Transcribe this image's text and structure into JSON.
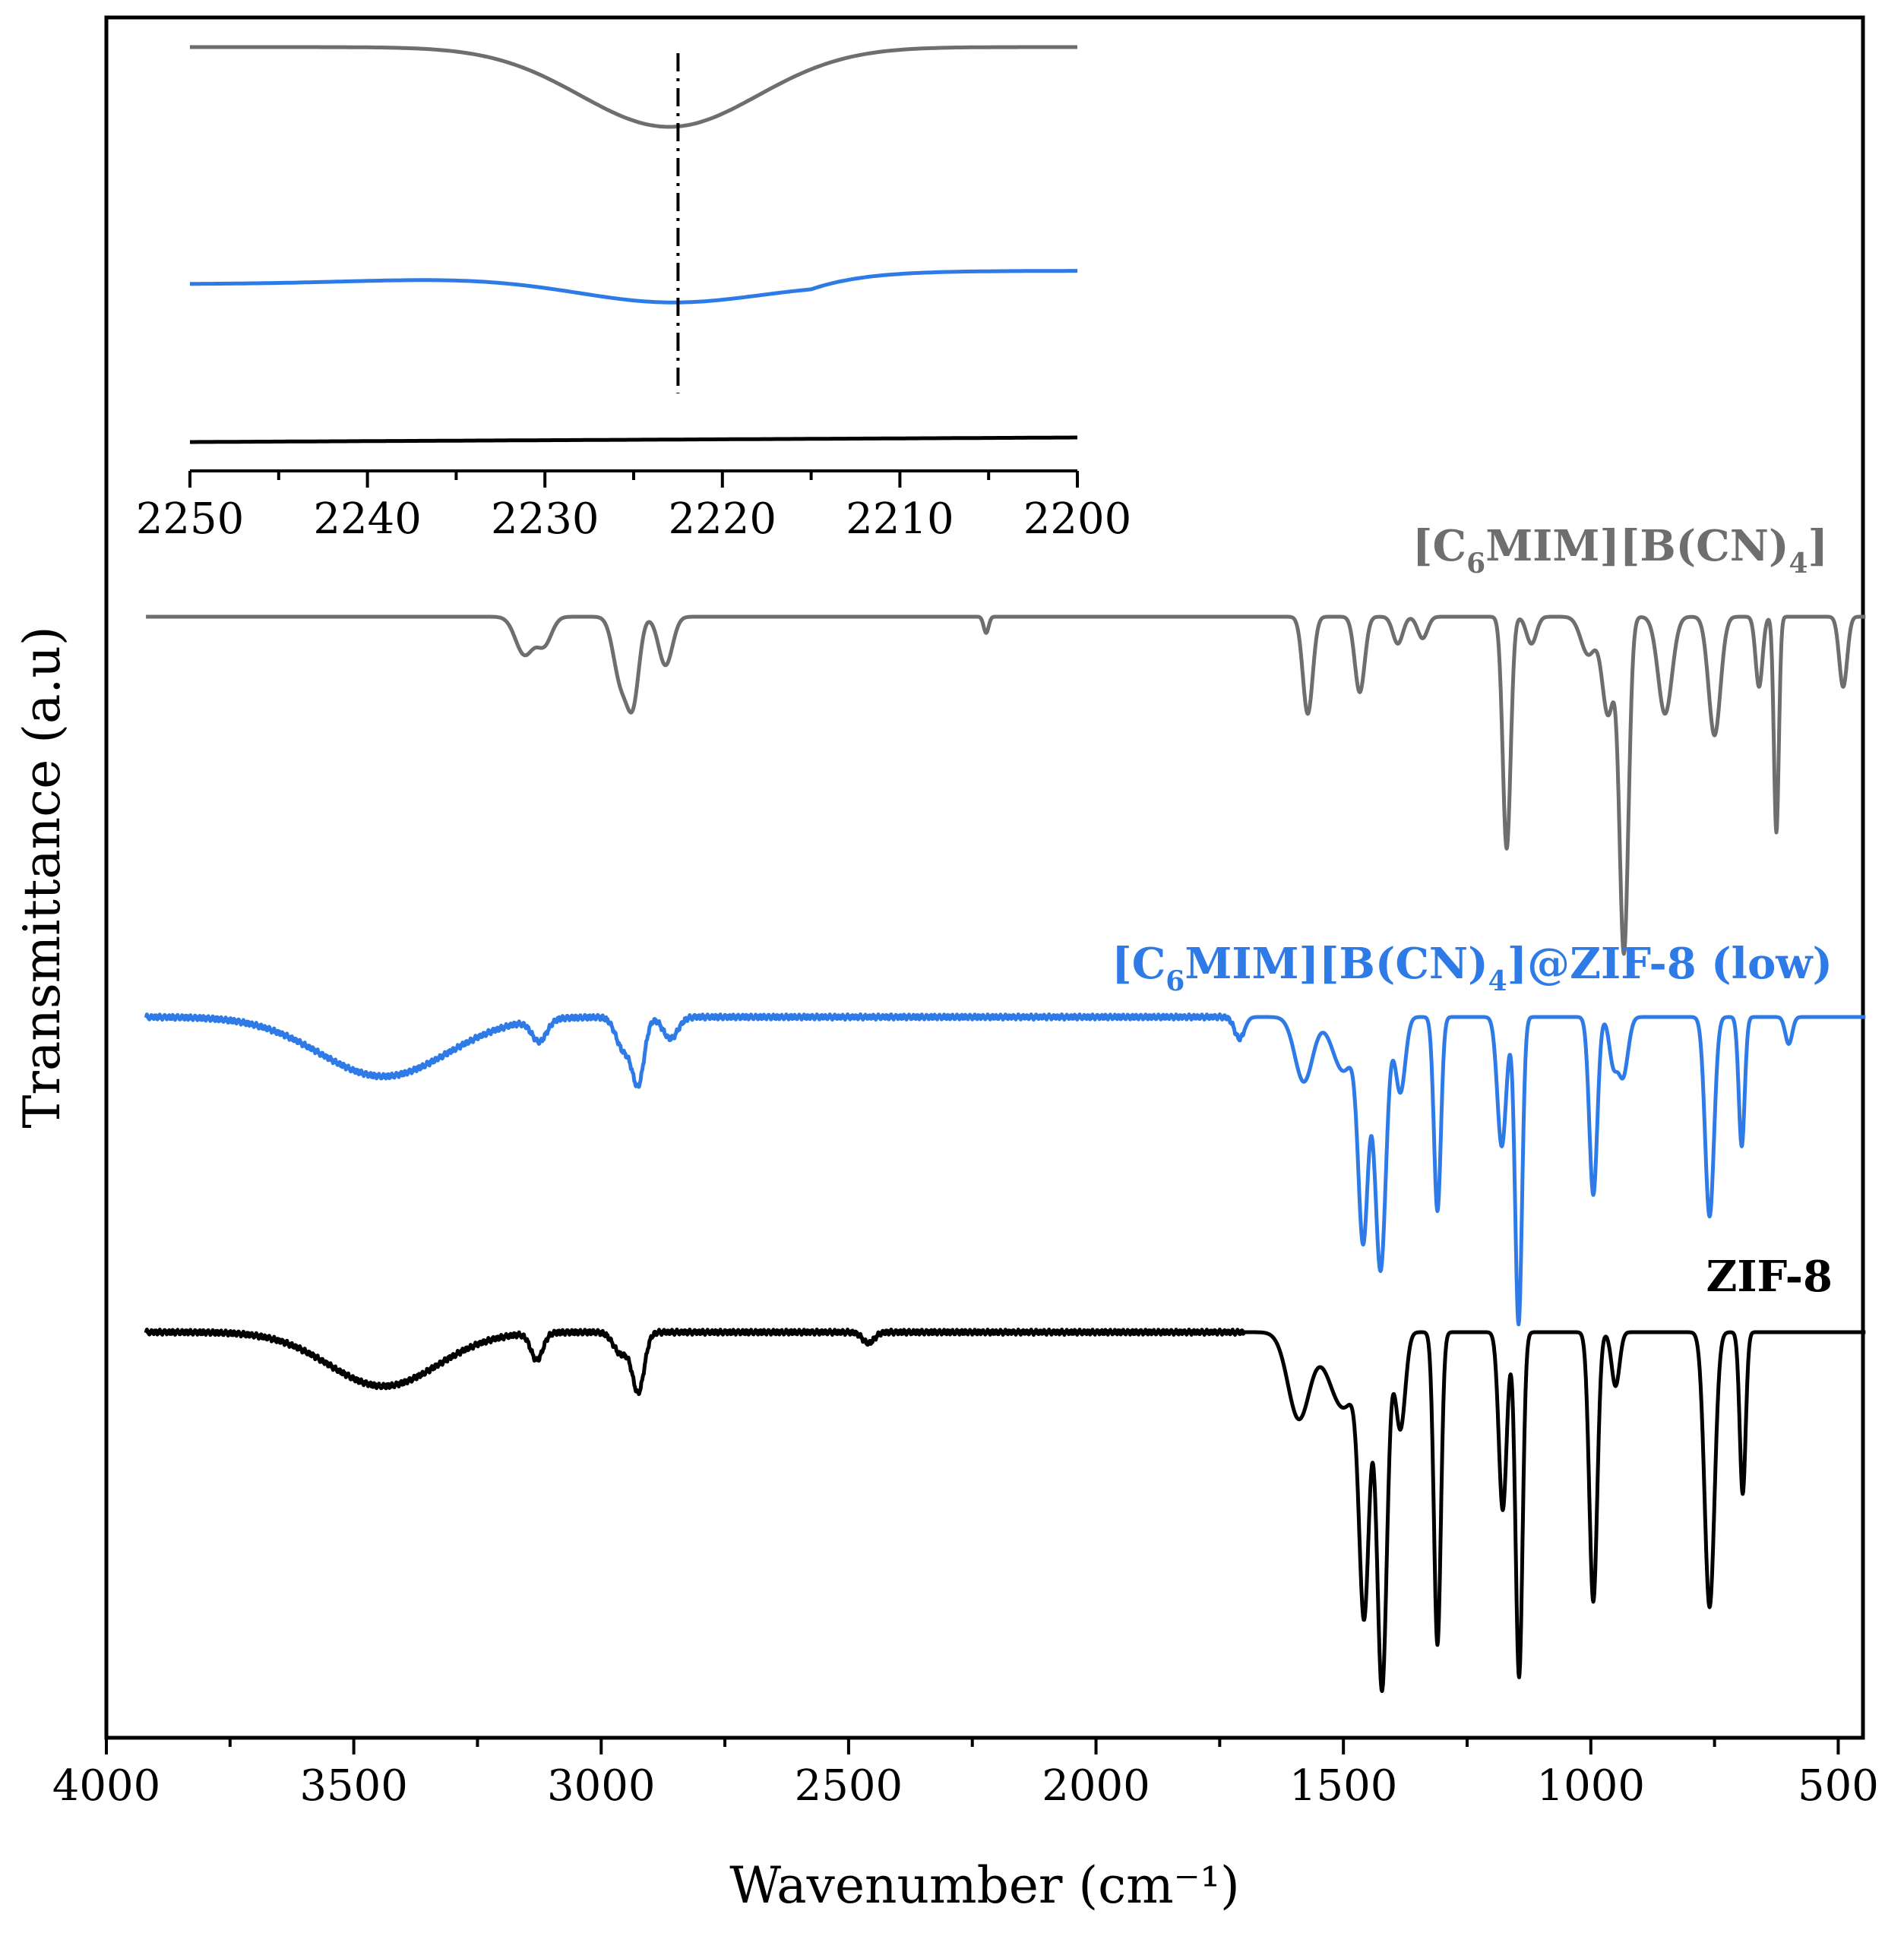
{
  "chart_data": {
    "type": "line",
    "title": "",
    "xlabel": "Wavenumber (cm⁻¹)",
    "ylabel": "Transmittance (a.u)",
    "xlim": [
      4000,
      450
    ],
    "x_direction": "reversed",
    "x_ticks": [
      "4000",
      "3500",
      "3000",
      "2500",
      "2000",
      "1500",
      "1000",
      "500"
    ],
    "y_ticks": [],
    "grid": false,
    "series": [
      {
        "name": "[C6MIM][B(CN)4]",
        "label_main": "[C",
        "label_sub1": "6",
        "label_mid": "MIM][B(CN)",
        "label_sub2": "4",
        "label_end": "]",
        "color": "#6e6e6e",
        "baseline": 0,
        "peaks": [
          {
            "x": 3155,
            "depth": 0.07,
            "width": 18
          },
          {
            "x": 3115,
            "depth": 0.05,
            "width": 15
          },
          {
            "x": 2960,
            "depth": 0.12,
            "width": 15
          },
          {
            "x": 2935,
            "depth": 0.14,
            "width": 12
          },
          {
            "x": 2870,
            "depth": 0.09,
            "width": 14
          },
          {
            "x": 2222,
            "depth": 0.03,
            "width": 5
          },
          {
            "x": 1572,
            "depth": 0.18,
            "width": 10
          },
          {
            "x": 1467,
            "depth": 0.14,
            "width": 10
          },
          {
            "x": 1390,
            "depth": 0.05,
            "width": 10
          },
          {
            "x": 1340,
            "depth": 0.04,
            "width": 10
          },
          {
            "x": 1170,
            "depth": 0.43,
            "width": 8
          },
          {
            "x": 1120,
            "depth": 0.05,
            "width": 10
          },
          {
            "x": 1005,
            "depth": 0.07,
            "width": 15
          },
          {
            "x": 965,
            "depth": 0.18,
            "width": 12
          },
          {
            "x": 933,
            "depth": 0.62,
            "width": 9
          },
          {
            "x": 850,
            "depth": 0.18,
            "width": 14
          },
          {
            "x": 750,
            "depth": 0.22,
            "width": 12
          },
          {
            "x": 660,
            "depth": 0.13,
            "width": 7
          },
          {
            "x": 625,
            "depth": 0.4,
            "width": 5
          },
          {
            "x": 490,
            "depth": 0.13,
            "width": 8
          }
        ]
      },
      {
        "name": "[C6MIM][B(CN)4]@ZIF-8 (low)",
        "label_main": "[C",
        "label_sub1": "6",
        "label_mid": "MIM][B(CN)",
        "label_sub2": "4",
        "label_end": "]@ZIF-8 (low)",
        "color": "#2e7be8",
        "baseline": 0,
        "noise": 0.005,
        "peaks": [
          {
            "x": 3440,
            "depth": 0.11,
            "width": 130
          },
          {
            "x": 3125,
            "depth": 0.04,
            "width": 15
          },
          {
            "x": 2955,
            "depth": 0.06,
            "width": 15
          },
          {
            "x": 2925,
            "depth": 0.12,
            "width": 12
          },
          {
            "x": 2860,
            "depth": 0.04,
            "width": 15
          },
          {
            "x": 1710,
            "depth": 0.04,
            "width": 10
          },
          {
            "x": 1580,
            "depth": 0.12,
            "width": 18
          },
          {
            "x": 1500,
            "depth": 0.1,
            "width": 22
          },
          {
            "x": 1460,
            "depth": 0.4,
            "width": 10
          },
          {
            "x": 1425,
            "depth": 0.47,
            "width": 11
          },
          {
            "x": 1385,
            "depth": 0.14,
            "width": 10
          },
          {
            "x": 1310,
            "depth": 0.36,
            "width": 7
          },
          {
            "x": 1180,
            "depth": 0.24,
            "width": 9
          },
          {
            "x": 1146,
            "depth": 0.57,
            "width": 7
          },
          {
            "x": 995,
            "depth": 0.33,
            "width": 8
          },
          {
            "x": 955,
            "depth": 0.08,
            "width": 8
          },
          {
            "x": 935,
            "depth": 0.11,
            "width": 10
          },
          {
            "x": 760,
            "depth": 0.37,
            "width": 9
          },
          {
            "x": 695,
            "depth": 0.24,
            "width": 6
          },
          {
            "x": 600,
            "depth": 0.05,
            "width": 7
          }
        ]
      },
      {
        "name": "ZIF-8",
        "label_main": "ZIF-8",
        "color": "#000000",
        "baseline": 0,
        "noise": 0.005,
        "peaks": [
          {
            "x": 3440,
            "depth": 0.1,
            "width": 110
          },
          {
            "x": 3130,
            "depth": 0.05,
            "width": 12
          },
          {
            "x": 2960,
            "depth": 0.04,
            "width": 15
          },
          {
            "x": 2925,
            "depth": 0.11,
            "width": 12
          },
          {
            "x": 2460,
            "depth": 0.02,
            "width": 12
          },
          {
            "x": 1590,
            "depth": 0.16,
            "width": 22
          },
          {
            "x": 1500,
            "depth": 0.14,
            "width": 30
          },
          {
            "x": 1458,
            "depth": 0.48,
            "width": 10
          },
          {
            "x": 1422,
            "depth": 0.66,
            "width": 10
          },
          {
            "x": 1385,
            "depth": 0.18,
            "width": 10
          },
          {
            "x": 1310,
            "depth": 0.58,
            "width": 7
          },
          {
            "x": 1178,
            "depth": 0.33,
            "width": 8
          },
          {
            "x": 1145,
            "depth": 0.64,
            "width": 7
          },
          {
            "x": 995,
            "depth": 0.5,
            "width": 8
          },
          {
            "x": 950,
            "depth": 0.1,
            "width": 8
          },
          {
            "x": 760,
            "depth": 0.51,
            "width": 10
          },
          {
            "x": 693,
            "depth": 0.3,
            "width": 6
          }
        ]
      }
    ],
    "inset": {
      "xlim": [
        2250,
        2200
      ],
      "x_ticks": [
        "2250",
        "2240",
        "2230",
        "2220",
        "2210",
        "2200"
      ],
      "reference_line_x": 2222.5,
      "series": [
        {
          "name": "[C6MIM][B(CN)4]",
          "color": "#6e6e6e",
          "baseline": 0,
          "dip_center": 2223,
          "dip_depth": 0.21,
          "dip_width": 5
        },
        {
          "name": "[C6MIM][B(CN)4]@ZIF-8 (low)",
          "color": "#2e7be8",
          "baseline": 0,
          "dip_center": 2223,
          "dip_depth": 0.05,
          "dip_width": 5
        },
        {
          "name": "ZIF-8",
          "color": "#000000",
          "baseline": 0,
          "dip_center": 2223,
          "dip_depth": 0.0,
          "dip_width": 5
        }
      ]
    }
  }
}
